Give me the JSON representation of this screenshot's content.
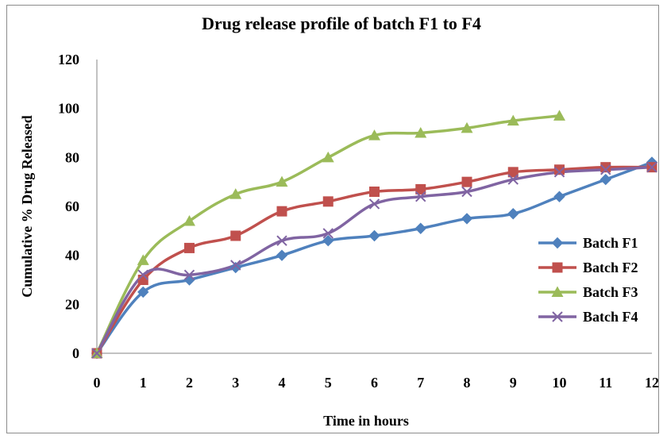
{
  "chart_data": {
    "type": "line",
    "title": "Drug release profile of batch F1 to F4",
    "xlabel": "Time in hours",
    "ylabel": "Cumulative % Drug Released",
    "xlim": [
      0,
      12
    ],
    "ylim": [
      0,
      120
    ],
    "x_ticks": [
      "0",
      "1",
      "2",
      "3",
      "4",
      "5",
      "6",
      "7",
      "8",
      "9",
      "10",
      "11",
      "12"
    ],
    "y_ticks": [
      "0",
      "20",
      "40",
      "60",
      "80",
      "100",
      "120"
    ],
    "grid": false,
    "legend_position": "right",
    "series": [
      {
        "name": "Batch F1",
        "color": "#4f81bd",
        "marker": "diamond",
        "x": [
          0,
          1,
          2,
          3,
          4,
          5,
          6,
          7,
          8,
          9,
          10,
          11,
          12
        ],
        "y": [
          0,
          25,
          30,
          35,
          40,
          46,
          48,
          51,
          55,
          57,
          64,
          71,
          78
        ]
      },
      {
        "name": "Batch F2",
        "color": "#c0504d",
        "marker": "square",
        "x": [
          0,
          1,
          2,
          3,
          4,
          5,
          6,
          7,
          8,
          9,
          10,
          11,
          12
        ],
        "y": [
          0,
          30,
          43,
          48,
          58,
          62,
          66,
          67,
          70,
          74,
          75,
          76,
          76
        ]
      },
      {
        "name": "Batch F3",
        "color": "#9bbb59",
        "marker": "triangle",
        "x": [
          0,
          1,
          2,
          3,
          4,
          5,
          6,
          7,
          8,
          9,
          10
        ],
        "y": [
          0,
          38,
          54,
          65,
          70,
          80,
          89,
          90,
          92,
          95,
          97
        ]
      },
      {
        "name": "Batch F4",
        "color": "#8064a2",
        "marker": "x",
        "x": [
          0,
          1,
          2,
          3,
          4,
          5,
          6,
          7,
          8,
          9,
          10,
          11,
          12
        ],
        "y": [
          0,
          32,
          32,
          36,
          46,
          49,
          61,
          64,
          66,
          71,
          74,
          75,
          76
        ]
      }
    ]
  }
}
